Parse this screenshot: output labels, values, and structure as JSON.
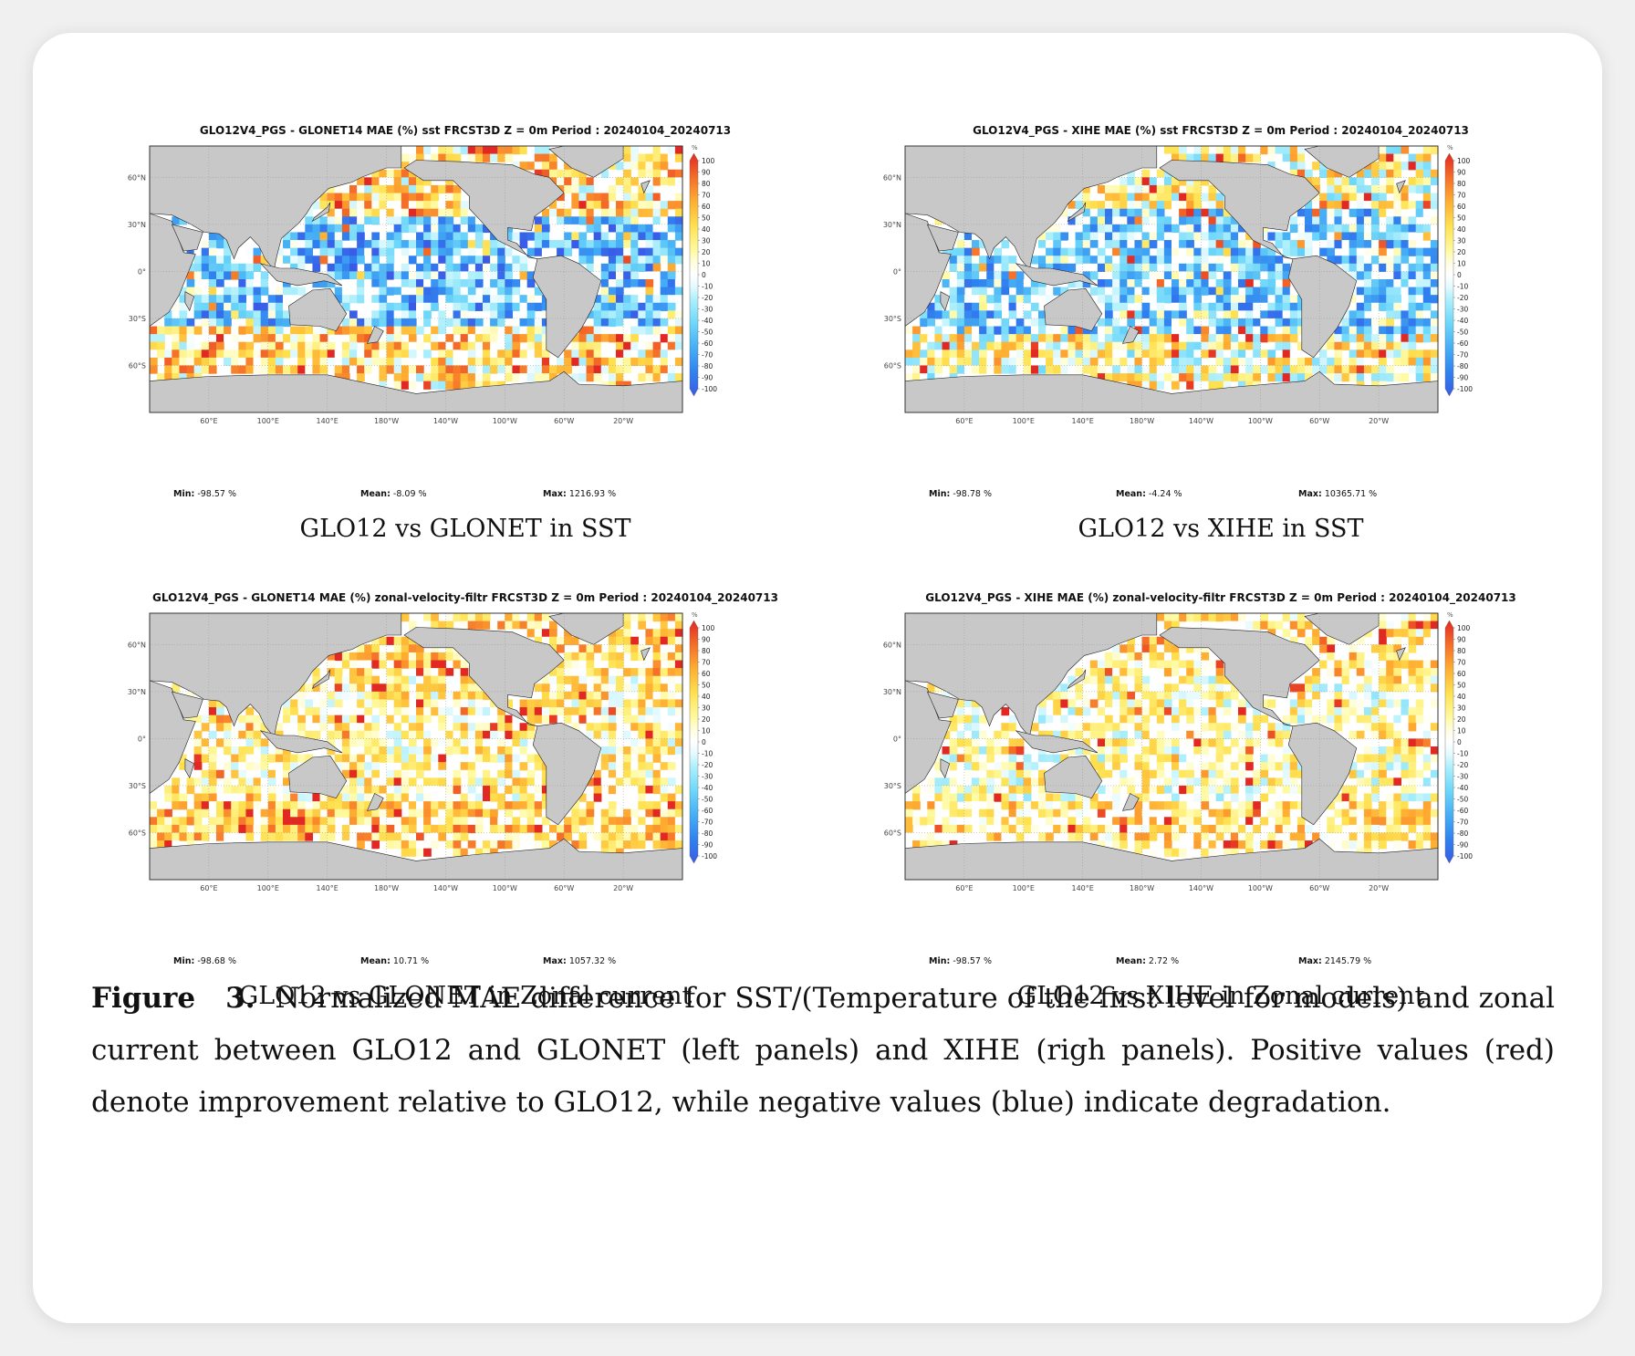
{
  "colorbar": {
    "unit": "%",
    "ticks": [
      "100",
      "90",
      "80",
      "70",
      "60",
      "50",
      "40",
      "30",
      "20",
      "10",
      "0",
      "-10",
      "-20",
      "-30",
      "-40",
      "-50",
      "-60",
      "-70",
      "-80",
      "-90",
      "-100"
    ]
  },
  "axes": {
    "lat_labels": [
      "60°N",
      "30°N",
      "0°",
      "30°S",
      "60°S"
    ],
    "lon_labels": [
      "60°E",
      "100°E",
      "140°E",
      "180°W",
      "140°W",
      "100°W",
      "60°W",
      "20°W"
    ]
  },
  "panels": [
    {
      "title": "GLO12V4_PGS - GLONET14 MAE (%) sst FRCST3D Z = 0m Period : 20240104_20240713",
      "min_label": "Min:",
      "min_value": "-98.57 %",
      "mean_label": "Mean:",
      "mean_value": "-8.09 %",
      "max_label": "Max:",
      "max_value": "1216.93 %",
      "subcaption": "GLO12 vs GLONET in SST"
    },
    {
      "title": "GLO12V4_PGS - XIHE MAE (%) sst FRCST3D Z = 0m Period : 20240104_20240713",
      "min_label": "Min:",
      "min_value": "-98.78 %",
      "mean_label": "Mean:",
      "mean_value": "-4.24 %",
      "max_label": "Max:",
      "max_value": "10365.71 %",
      "subcaption": "GLO12 vs XIHE in SST"
    },
    {
      "title": "GLO12V4_PGS - GLONET14 MAE (%) zonal-velocity-filtr FRCST3D Z = 0m Period : 20240104_20240713",
      "min_label": "Min:",
      "min_value": "-98.68 %",
      "mean_label": "Mean:",
      "mean_value": "10.71 %",
      "max_label": "Max:",
      "max_value": "1057.32 %",
      "subcaption": "GLO12 vs GLONET in Zonal current"
    },
    {
      "title": "GLO12V4_PGS - XIHE MAE (%) zonal-velocity-filtr FRCST3D Z = 0m Period : 20240104_20240713",
      "min_label": "Min:",
      "min_value": "-98.57 %",
      "mean_label": "Mean:",
      "mean_value": "2.72 %",
      "max_label": "Max:",
      "max_value": "2145.79 %",
      "subcaption": "GLO12 vs XIHE in Zonal current"
    }
  ],
  "caption": {
    "label": "Figure 3.",
    "text": "Normalized MAE difference for SST/(Temperature of the first level for models) and zonal current between GLO12 and GLONET (left panels) and XIHE (righ panels). Positive values (red) denote improvement relative to GLO12, while negative values (blue) indicate degradation."
  },
  "colors": {
    "land": "#c8c8c8",
    "positive": "#e8312a",
    "negative": "#2e7bea",
    "neutral": "#ffffff"
  }
}
